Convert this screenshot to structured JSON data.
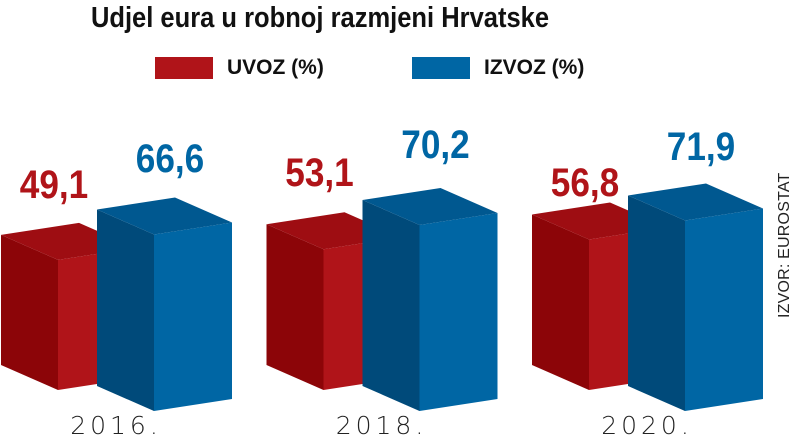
{
  "chart_data": {
    "type": "bar",
    "title": "Udjel eura u robnoj razmjeni Hrvatske",
    "categories": [
      "2016.",
      "2018.",
      "2020."
    ],
    "series": [
      {
        "name": "UVOZ (%)",
        "values": [
          49.1,
          53.1,
          56.8
        ],
        "labels": [
          "49,1",
          "53,1",
          "56,8"
        ],
        "color": "#b01419"
      },
      {
        "name": "IZVOZ (%)",
        "values": [
          66.6,
          70.2,
          71.9
        ],
        "labels": [
          "66,6",
          "70,2",
          "71,9"
        ],
        "color": "#0066a4"
      }
    ],
    "legend": "top",
    "source": "IZVOR: EUROSTAT",
    "grid": false
  }
}
